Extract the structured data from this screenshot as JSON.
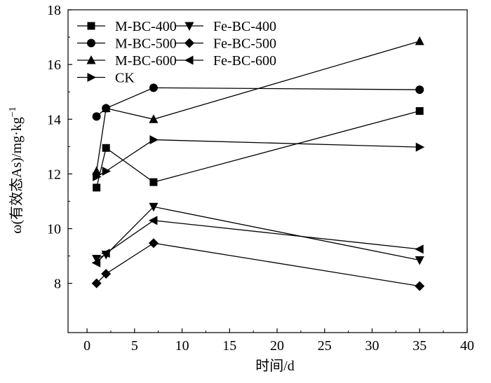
{
  "chart_data": {
    "type": "line",
    "title": "",
    "xlabel": "时间/d",
    "ylabel_main": "ω(有效态As)/mg·kg",
    "ylabel_sup": "−1",
    "xlim": [
      -2,
      40
    ],
    "ylim": [
      6.2,
      18
    ],
    "xticks": [
      0,
      5,
      10,
      15,
      20,
      25,
      30,
      35,
      40
    ],
    "yticks": [
      8,
      10,
      12,
      14,
      16,
      18
    ],
    "grid": false,
    "legend_position": "top-left",
    "series": [
      {
        "name": "M-BC-400",
        "marker": "square",
        "x": [
          1,
          2,
          7,
          35
        ],
        "y": [
          11.5,
          12.95,
          11.7,
          14.3
        ]
      },
      {
        "name": "M-BC-500",
        "marker": "circle",
        "x": [
          1,
          2,
          7,
          35
        ],
        "y": [
          14.1,
          14.4,
          15.15,
          15.08
        ]
      },
      {
        "name": "M-BC-600",
        "marker": "triangle-up",
        "x": [
          1,
          2,
          7,
          35
        ],
        "y": [
          12.1,
          14.4,
          14.0,
          16.85
        ]
      },
      {
        "name": "Fe-BC-400",
        "marker": "triangle-down",
        "x": [
          1,
          2,
          7,
          35
        ],
        "y": [
          8.9,
          9.05,
          10.8,
          8.85
        ]
      },
      {
        "name": "Fe-BC-500",
        "marker": "diamond",
        "x": [
          1,
          2,
          7,
          35
        ],
        "y": [
          8.0,
          8.35,
          9.47,
          7.9
        ]
      },
      {
        "name": "Fe-BC-600",
        "marker": "triangle-left",
        "x": [
          1,
          2,
          7,
          35
        ],
        "y": [
          8.75,
          9.1,
          10.3,
          9.25
        ]
      },
      {
        "name": "CK",
        "marker": "triangle-right",
        "x": [
          1,
          2,
          7,
          35
        ],
        "y": [
          11.9,
          12.1,
          13.25,
          12.98
        ]
      }
    ]
  }
}
